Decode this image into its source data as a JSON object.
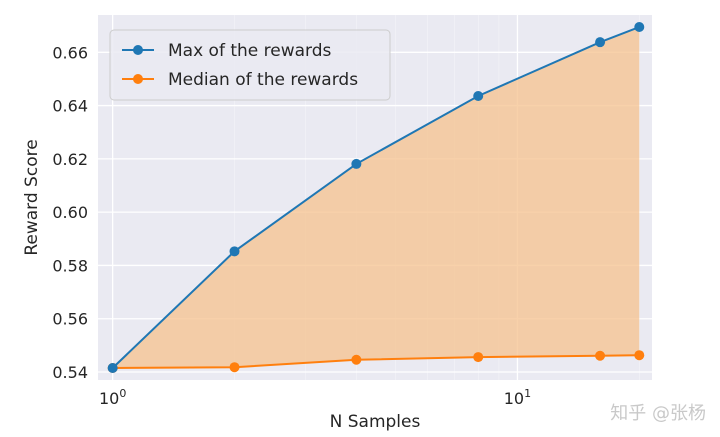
{
  "chart_data": {
    "type": "line",
    "xscale": "log",
    "x": [
      1,
      2,
      4,
      8,
      16,
      20
    ],
    "xlim": [
      0.92,
      21.5
    ],
    "ylim": [
      0.537,
      0.674
    ],
    "xticks": [
      {
        "value": 1,
        "base": "10",
        "exp": "0"
      },
      {
        "value": 10,
        "base": "10",
        "exp": "1"
      }
    ],
    "yticks": [
      0.54,
      0.56,
      0.58,
      0.6,
      0.62,
      0.64,
      0.66
    ],
    "ytick_labels": [
      "0.54",
      "0.56",
      "0.58",
      "0.60",
      "0.62",
      "0.64",
      "0.66"
    ],
    "xlabel": "N Samples",
    "ylabel": "Reward Score",
    "grid": true,
    "legend_position": "top-left",
    "fill_between": {
      "color": "#f5c28d",
      "opacity": 0.75
    },
    "series": [
      {
        "name": "Max of the rewards",
        "color": "#1f77b4",
        "values": [
          0.5415,
          0.5853,
          0.6181,
          0.6436,
          0.6638,
          0.6695
        ]
      },
      {
        "name": "Median of the rewards",
        "color": "#ff7f0e",
        "values": [
          0.5415,
          0.5418,
          0.5446,
          0.5456,
          0.5461,
          0.5463
        ]
      }
    ]
  },
  "watermark": "知乎 @张杨"
}
